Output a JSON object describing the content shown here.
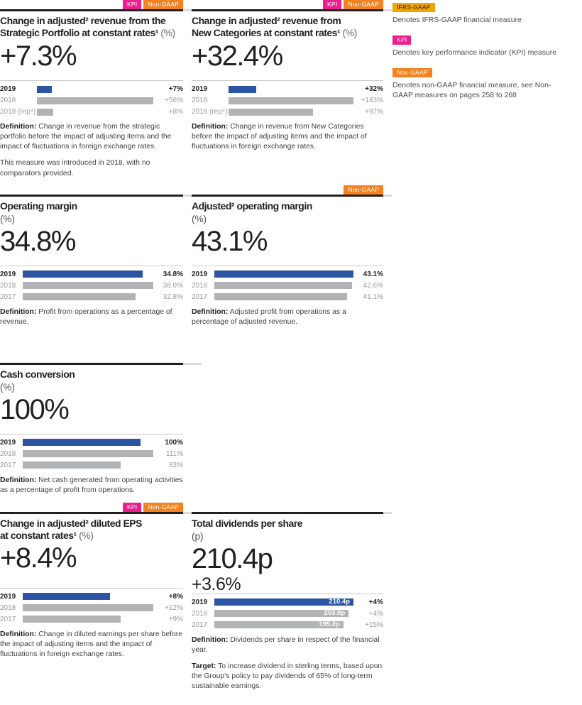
{
  "colors": {
    "bar_highlight_blue": "#2B54A3",
    "bar_gray": "#B1B3B5",
    "kpi_pink": "#EC1E8D",
    "non_gaap_orange": "#F5821F",
    "ifrs_gaap_amber": "#EFA500",
    "rule_black": "#231F20"
  },
  "legend": {
    "items": [
      {
        "tag": "IFRS-GAAP",
        "text": "Denotes IFRS-GAAP financial measure"
      },
      {
        "tag": "KPI",
        "text": "Denotes key performance indicator (KPI) measure"
      },
      {
        "tag": "Non-GAAP",
        "text": "Denotes non-GAAP financial measure, see Non-GAAP measures on pages 258 to 268"
      }
    ]
  },
  "cards": [
    {
      "tags": [
        "KPI",
        "Non-GAAP"
      ],
      "title_lines": [
        "Change in adjusted² revenue from the",
        "Strategic Portfolio at constant rates¹"
      ],
      "title_suffix": " (%)",
      "unit": "",
      "value": "+7.3%",
      "value2": "",
      "paragraphs": [
        {
          "lead": "Definition:",
          "text": "Change in revenue from the strategic portfolio before the impact of adjusting items and the impact of fluctuations in foreign exchange rates."
        },
        {
          "lead": "",
          "text": "This measure was introduced in 2018, with no comparators provided."
        }
      ]
    },
    {
      "tags": [
        "KPI",
        "Non-GAAP"
      ],
      "title_lines": [
        "Change in adjusted² revenue from",
        "New Categories at constant rates¹"
      ],
      "title_suffix": " (%)",
      "unit": "",
      "value": "+32.4%",
      "value2": "",
      "paragraphs": [
        {
          "lead": "Definition:",
          "text": "Change in revenue from New Categories before the impact of adjusting items and the impact of fluctuations in foreign exchange rates."
        }
      ]
    },
    {
      "tags": [],
      "title_lines": [
        "Operating margin"
      ],
      "title_suffix": "",
      "unit": "(%)",
      "value": "34.8%",
      "value2": "",
      "paragraphs": [
        {
          "lead": "Definition:",
          "text": "Profit from operations as a percentage of revenue."
        }
      ]
    },
    {
      "tags": [
        "Non-GAAP"
      ],
      "title_lines": [
        "Adjusted² operating margin"
      ],
      "title_suffix": "",
      "unit": "(%)",
      "value": "43.1%",
      "value2": "",
      "paragraphs": [
        {
          "lead": "Definition:",
          "text": "Adjusted profit from operations as a percentage of adjusted revenue."
        }
      ]
    },
    {
      "tags": [],
      "title_lines": [
        "Cash conversion"
      ],
      "title_suffix": "",
      "unit": "(%)",
      "value": "100%",
      "value2": "",
      "paragraphs": [
        {
          "lead": "Definition:",
          "text": "Net cash generated from operating activities as a percentage of profit from operations."
        }
      ]
    },
    {
      "tags": [
        "KPI",
        "Non-GAAP"
      ],
      "title_lines": [
        "Change in adjusted² diluted EPS",
        "at constant rates¹"
      ],
      "title_suffix": " (%)",
      "unit": "",
      "value": "+8.4%",
      "value2": "",
      "paragraphs": [
        {
          "lead": "Definition:",
          "text": "Change in diluted earnings per share before the impact of adjusting items and the impact of fluctuations in foreign exchange rates."
        }
      ]
    },
    {
      "tags": [],
      "title_lines": [
        "Total dividends per share"
      ],
      "title_suffix": "",
      "unit": "(p)",
      "value": "210.4p",
      "value2": "+3.6%",
      "paragraphs": [
        {
          "lead": "Definition:",
          "text": "Dividends per share in respect of the financial year."
        },
        {
          "lead": "Target:",
          "text": "To increase dividend in sterling terms, based upon the Group’s policy to pay dividends of 65% of long-term sustainable earnings."
        }
      ]
    }
  ],
  "chart_data": [
    {
      "type": "bar",
      "orientation": "horizontal",
      "title": "Change in adjusted² revenue from the Strategic Portfolio at constant rates¹ (%)",
      "headline": "+7.3%",
      "categories": [
        "2019",
        "2018",
        "2018 (rep⁴)"
      ],
      "values": [
        7,
        56,
        8
      ],
      "labels": [
        "+7%",
        "+56%",
        "+8%"
      ],
      "bar_labels": [
        "",
        "",
        ""
      ],
      "xlim": [
        0,
        56
      ],
      "highlight": "2019"
    },
    {
      "type": "bar",
      "orientation": "horizontal",
      "title": "Change in adjusted² revenue from New Categories at constant rates¹ (%)",
      "headline": "+32.4%",
      "categories": [
        "2019",
        "2018",
        "2018 (rep⁴)"
      ],
      "values": [
        32,
        143,
        97
      ],
      "labels": [
        "+32%",
        "+143%",
        "+97%"
      ],
      "bar_labels": [
        "",
        "",
        ""
      ],
      "xlim": [
        0,
        143
      ],
      "highlight": "2019"
    },
    {
      "type": "bar",
      "orientation": "horizontal",
      "title": "Operating margin (%)",
      "headline": "34.8%",
      "categories": [
        "2019",
        "2018",
        "2017"
      ],
      "values": [
        34.8,
        38.0,
        32.8
      ],
      "labels": [
        "34.8%",
        "38.0%",
        "32.8%"
      ],
      "bar_labels": [
        "",
        "",
        ""
      ],
      "xlim": [
        0,
        38
      ],
      "highlight": "2019"
    },
    {
      "type": "bar",
      "orientation": "horizontal",
      "title": "Adjusted² operating margin (%)",
      "headline": "43.1%",
      "categories": [
        "2019",
        "2018",
        "2017"
      ],
      "values": [
        43.1,
        42.6,
        41.1
      ],
      "labels": [
        "43.1%",
        "42.6%",
        "41.1%"
      ],
      "bar_labels": [
        "",
        "",
        ""
      ],
      "xlim": [
        0,
        43.1
      ],
      "highlight": "2019"
    },
    {
      "type": "bar",
      "orientation": "horizontal",
      "title": "Cash conversion (%)",
      "headline": "100%",
      "categories": [
        "2019",
        "2018",
        "2017"
      ],
      "values": [
        100,
        111,
        83
      ],
      "labels": [
        "100%",
        "111%",
        "83%"
      ],
      "bar_labels": [
        "",
        "",
        ""
      ],
      "xlim": [
        0,
        111
      ],
      "highlight": "2019"
    },
    {
      "type": "bar",
      "orientation": "horizontal",
      "title": "Change in adjusted² diluted EPS at constant rates¹ (%)",
      "headline": "+8.4%",
      "categories": [
        "2019",
        "2018",
        "2017"
      ],
      "values": [
        8,
        12,
        9
      ],
      "labels": [
        "+8%",
        "+12%",
        "+9%"
      ],
      "bar_labels": [
        "",
        "",
        ""
      ],
      "xlim": [
        0,
        12
      ],
      "highlight": "2019"
    },
    {
      "type": "bar",
      "orientation": "horizontal",
      "title": "Total dividends per share (p)",
      "headline": "210.4p",
      "headline_change": "+3.6%",
      "categories": [
        "2019",
        "2018",
        "2017"
      ],
      "values": [
        210.4,
        203.0,
        195.2
      ],
      "labels": [
        "+4%",
        "+4%",
        "+15%"
      ],
      "bar_labels": [
        "210.4p",
        "203.0p",
        "195.2p"
      ],
      "xlim": [
        0,
        210.4
      ],
      "highlight": "2019"
    }
  ]
}
